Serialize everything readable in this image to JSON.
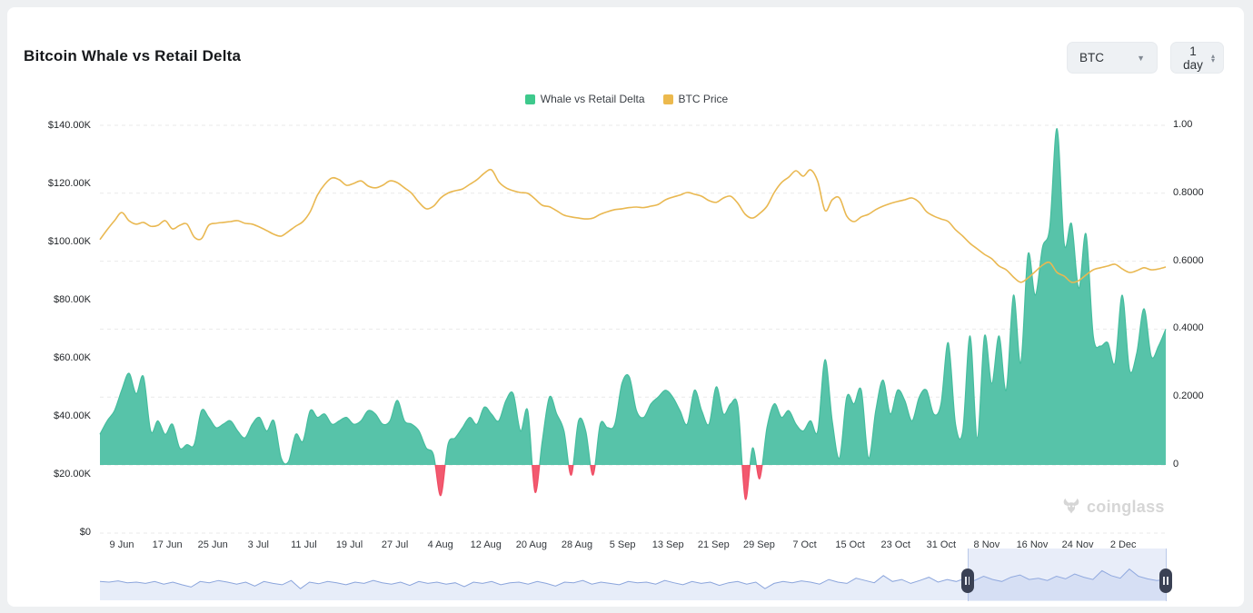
{
  "page": {
    "background": "#eef0f2",
    "card_background": "#ffffff"
  },
  "header": {
    "title": "Bitcoin Whale vs Retail Delta",
    "symbol_select": {
      "value": "BTC"
    },
    "interval_select": {
      "value": "1 day"
    }
  },
  "legend": [
    {
      "label": "Whale vs Retail Delta",
      "color": "#3ec98c"
    },
    {
      "label": "BTC Price",
      "color": "#ecb94d"
    }
  ],
  "watermark": {
    "text": "coinglass"
  },
  "chart_data": {
    "type": "area+line",
    "title": "Bitcoin Whale vs Retail Delta",
    "left_axis": {
      "ticks": [
        "$140.00K",
        "$120.00K",
        "$100.00K",
        "$80.00K",
        "$60.00K",
        "$40.00K",
        "$20.00K",
        "$0"
      ],
      "values_k": [
        140,
        120,
        100,
        80,
        60,
        40,
        20,
        0
      ],
      "range_k": [
        0,
        140
      ]
    },
    "right_axis": {
      "ticks": [
        "1.00",
        "0.8000",
        "0.6000",
        "0.4000",
        "0.2000",
        "0"
      ],
      "values": [
        1,
        0.8,
        0.6,
        0.4,
        0.2,
        0
      ],
      "range": [
        0,
        1
      ]
    },
    "x_axis": {
      "ticks": [
        "9 Jun",
        "17 Jun",
        "25 Jun",
        "3 Jul",
        "11 Jul",
        "19 Jul",
        "27 Jul",
        "4 Aug",
        "12 Aug",
        "20 Aug",
        "28 Aug",
        "5 Sep",
        "13 Sep",
        "21 Sep",
        "29 Sep",
        "7 Oct",
        "15 Oct",
        "23 Oct",
        "31 Oct",
        "8 Nov",
        "16 Nov",
        "24 Nov",
        "2 Dec"
      ],
      "tick_interval_days": 8
    },
    "grid": {
      "horizontal_dashed": true,
      "color": "#e9e9e9"
    },
    "series": [
      {
        "name": "Whale vs Retail Delta",
        "type": "area",
        "axis": "right",
        "color_positive": "#57c3a9",
        "stroke_positive": "#45bd9e",
        "color_negative": "#f2596f",
        "stroke_negative": "#ef4d64",
        "values": [
          0.09,
          0.13,
          0.16,
          0.22,
          0.27,
          0.21,
          0.26,
          0.1,
          0.13,
          0.09,
          0.12,
          0.05,
          0.06,
          0.06,
          0.16,
          0.14,
          0.11,
          0.12,
          0.13,
          0.1,
          0.08,
          0.12,
          0.14,
          0.1,
          0.13,
          0.02,
          0.01,
          0.09,
          0.07,
          0.16,
          0.14,
          0.15,
          0.12,
          0.13,
          0.14,
          0.12,
          0.13,
          0.16,
          0.15,
          0.12,
          0.13,
          0.19,
          0.13,
          0.12,
          0.1,
          0.05,
          0.03,
          -0.09,
          0.06,
          0.08,
          0.11,
          0.14,
          0.12,
          0.17,
          0.15,
          0.13,
          0.19,
          0.21,
          0.1,
          0.16,
          -0.08,
          0.07,
          0.2,
          0.15,
          0.1,
          -0.03,
          0.13,
          0.1,
          -0.03,
          0.12,
          0.11,
          0.12,
          0.24,
          0.26,
          0.16,
          0.14,
          0.18,
          0.2,
          0.22,
          0.2,
          0.16,
          0.12,
          0.22,
          0.16,
          0.12,
          0.23,
          0.15,
          0.18,
          0.17,
          -0.1,
          0.05,
          -0.04,
          0.11,
          0.18,
          0.14,
          0.16,
          0.12,
          0.1,
          0.13,
          0.1,
          0.31,
          0.13,
          0.02,
          0.2,
          0.18,
          0.22,
          0.02,
          0.16,
          0.25,
          0.15,
          0.22,
          0.19,
          0.13,
          0.2,
          0.22,
          0.15,
          0.18,
          0.36,
          0.12,
          0.1,
          0.38,
          0.08,
          0.38,
          0.24,
          0.38,
          0.22,
          0.5,
          0.3,
          0.62,
          0.5,
          0.64,
          0.7,
          0.99,
          0.65,
          0.71,
          0.52,
          0.68,
          0.38,
          0.35,
          0.36,
          0.3,
          0.5,
          0.28,
          0.33,
          0.46,
          0.32,
          0.35,
          0.4
        ]
      },
      {
        "name": "BTC Price",
        "type": "line",
        "axis": "left",
        "color": "#e9b851",
        "values_usd_k": [
          101,
          104.4,
          107.5,
          110.3,
          107.5,
          106.3,
          106.9,
          105.6,
          105.9,
          107.5,
          104.7,
          105.9,
          106.3,
          101.9,
          101.3,
          105.9,
          106.6,
          106.9,
          107.2,
          107.5,
          106.6,
          106.3,
          105.3,
          104.1,
          102.8,
          102.2,
          103.8,
          105.6,
          107.2,
          110.6,
          116.3,
          120,
          122.2,
          121.6,
          119.7,
          120.3,
          121.2,
          119.4,
          118.8,
          119.7,
          121.2,
          120.6,
          118.8,
          116.9,
          113.8,
          111.6,
          112.5,
          115.3,
          117,
          117.8,
          118.4,
          120,
          121.6,
          123.8,
          125,
          120.9,
          118.8,
          117.8,
          117.2,
          116.9,
          115,
          112.8,
          112.3,
          110.9,
          109.4,
          108.8,
          108.4,
          108.1,
          108.4,
          109.7,
          110.6,
          111.3,
          111.6,
          112,
          112.2,
          112,
          112.5,
          113.1,
          114.7,
          115.6,
          116.3,
          117.2,
          116.6,
          115.9,
          114.4,
          113.8,
          115.3,
          115.9,
          113.4,
          109.7,
          108.4,
          110,
          112.5,
          117.2,
          120.6,
          122.5,
          124.7,
          122.8,
          125,
          121,
          111,
          114.7,
          115.3,
          109.1,
          107.2,
          108.8,
          109.7,
          111.3,
          112.5,
          113.4,
          114.1,
          114.7,
          115.3,
          113.8,
          110.6,
          109.1,
          108.1,
          107.2,
          104.4,
          102.2,
          99.7,
          97.8,
          95.9,
          94.4,
          91.9,
          90.6,
          88.1,
          86.3,
          87.8,
          90,
          92.2,
          93.1,
          89.7,
          88.4,
          86.3,
          86.9,
          88.8,
          90.6,
          91.3,
          91.9,
          92.5,
          90.9,
          89.7,
          90.3,
          91.3,
          90.6,
          90.9,
          91.6
        ]
      }
    ],
    "navigator": {
      "window_fraction": [
        0.814,
        1.0
      ],
      "line_color": "#8ba5dc",
      "fill_color": "#e7edf9",
      "handle_color": "#3a4154",
      "values": [
        0.52,
        0.5,
        0.54,
        0.48,
        0.5,
        0.46,
        0.52,
        0.44,
        0.5,
        0.42,
        0.35,
        0.52,
        0.48,
        0.55,
        0.5,
        0.44,
        0.5,
        0.38,
        0.52,
        0.46,
        0.42,
        0.55,
        0.3,
        0.5,
        0.45,
        0.52,
        0.48,
        0.42,
        0.5,
        0.46,
        0.55,
        0.48,
        0.44,
        0.5,
        0.4,
        0.52,
        0.46,
        0.5,
        0.44,
        0.48,
        0.36,
        0.5,
        0.46,
        0.52,
        0.42,
        0.48,
        0.5,
        0.44,
        0.52,
        0.46,
        0.38,
        0.5,
        0.48,
        0.55,
        0.44,
        0.5,
        0.46,
        0.42,
        0.52,
        0.48,
        0.5,
        0.44,
        0.55,
        0.48,
        0.42,
        0.52,
        0.46,
        0.5,
        0.4,
        0.48,
        0.52,
        0.44,
        0.5,
        0.3,
        0.46,
        0.52,
        0.48,
        0.54,
        0.5,
        0.44,
        0.58,
        0.5,
        0.46,
        0.62,
        0.55,
        0.48,
        0.7,
        0.52,
        0.58,
        0.46,
        0.55,
        0.65,
        0.5,
        0.58,
        0.52,
        0.62,
        0.55,
        0.68,
        0.58,
        0.52,
        0.65,
        0.72,
        0.58,
        0.62,
        0.55,
        0.68,
        0.6,
        0.75,
        0.65,
        0.58,
        0.85,
        0.7,
        0.62,
        0.9,
        0.68,
        0.6,
        0.55,
        0.58
      ]
    }
  }
}
